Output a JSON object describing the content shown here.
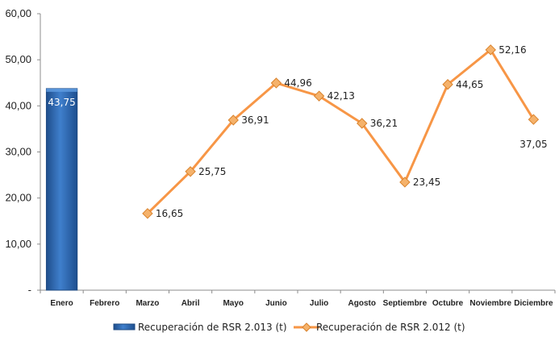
{
  "chart_data": {
    "type": "bar+line",
    "categories": [
      "Enero",
      "Febrero",
      "Marzo",
      "Abril",
      "Mayo",
      "Junio",
      "Julio",
      "Agosto",
      "Septiembre",
      "Octubre",
      "Noviembre",
      "Diciembre"
    ],
    "series": [
      {
        "name": "Recuperación de RSR 2.013 (t)",
        "type": "bar",
        "color": "#2E6EB8",
        "values": [
          43.75,
          null,
          null,
          null,
          null,
          null,
          null,
          null,
          null,
          null,
          null,
          null
        ],
        "labels": [
          "43,75",
          null,
          null,
          null,
          null,
          null,
          null,
          null,
          null,
          null,
          null,
          null
        ]
      },
      {
        "name": "Recuperación de RSR 2.012 (t)",
        "type": "line",
        "color": "#F79646",
        "marker_color": "#F5B26B",
        "values": [
          null,
          null,
          16.65,
          25.75,
          36.91,
          44.96,
          42.13,
          36.21,
          23.45,
          44.65,
          52.16,
          37.05
        ],
        "labels": [
          null,
          null,
          "16,65",
          "25,75",
          "36,91",
          "44,96",
          "42,13",
          "36,21",
          "23,45",
          "44,65",
          "52,16",
          "37,05"
        ]
      }
    ],
    "ylim": [
      0,
      60
    ],
    "yticks": [
      0,
      10,
      20,
      30,
      40,
      50,
      60
    ],
    "ytick_labels": [
      "-",
      "10,00",
      "20,00",
      "30,00",
      "40,00",
      "50,00",
      "60,00"
    ],
    "grid": false,
    "legend_position": "bottom"
  }
}
